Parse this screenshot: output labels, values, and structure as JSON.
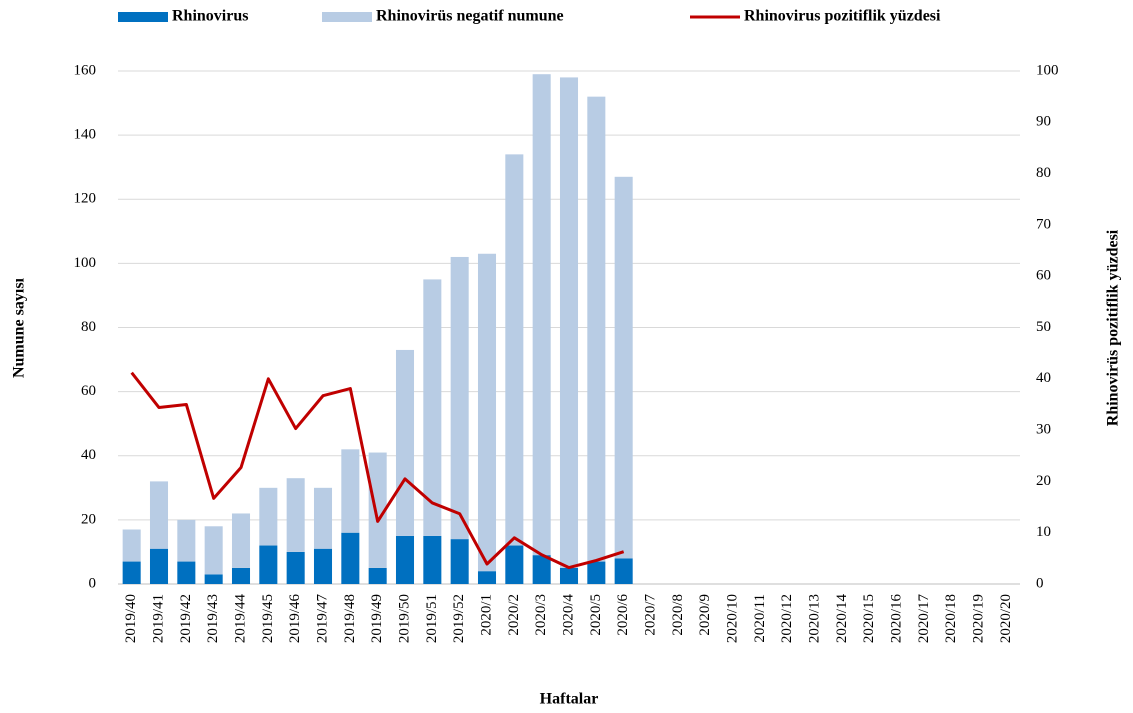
{
  "chart_data": {
    "type": "bar",
    "stacked": true,
    "grid": true,
    "x_label": "Haftalar",
    "y_label": "Numune sayısı",
    "y2_label": "Rhinovirüs pozitiflik yüzdesi",
    "categories": [
      "2019/40",
      "2019/41",
      "2019/42",
      "2019/43",
      "2019/44",
      "2019/45",
      "2019/46",
      "2019/47",
      "2019/48",
      "2019/49",
      "2019/50",
      "2019/51",
      "2019/52",
      "2020/1",
      "2020/2",
      "2020/3",
      "2020/4",
      "2020/5",
      "2020/6",
      "2020/7",
      "2020/8",
      "2020/9",
      "2020/10",
      "2020/11",
      "2020/12",
      "2020/13",
      "2020/14",
      "2020/15",
      "2020/16",
      "2020/17",
      "2020/18",
      "2020/19",
      "2020/20"
    ],
    "series": [
      {
        "name": "Rhinovirus",
        "type": "bar",
        "color": "#0070c0",
        "values": [
          7,
          11,
          7,
          3,
          5,
          12,
          10,
          11,
          16,
          5,
          15,
          15,
          14,
          4,
          12,
          9,
          5,
          7,
          8,
          null,
          null,
          null,
          null,
          null,
          null,
          null,
          null,
          null,
          null,
          null,
          null,
          null,
          null
        ]
      },
      {
        "name": "Rhinovirüs negatif numune",
        "type": "bar",
        "color": "#b8cce4",
        "values": [
          10,
          21,
          13,
          15,
          17,
          18,
          23,
          19,
          26,
          36,
          58,
          80,
          88,
          99,
          122,
          150,
          153,
          145,
          119,
          null,
          null,
          null,
          null,
          null,
          null,
          null,
          null,
          null,
          null,
          null,
          null,
          null,
          null
        ]
      },
      {
        "name": "Rhinovirus pozitiflik yüzdesi",
        "type": "line",
        "axis": "y2",
        "color": "#c00000",
        "values": [
          41.2,
          34.4,
          35,
          16.7,
          22.7,
          40,
          30.3,
          36.7,
          38.1,
          12.2,
          20.5,
          15.8,
          13.7,
          3.9,
          9,
          5.7,
          3.2,
          4.6,
          6.3,
          null,
          null,
          null,
          null,
          null,
          null,
          null,
          null,
          null,
          null,
          null,
          null,
          null,
          null
        ]
      }
    ],
    "ylim": [
      0,
      160
    ],
    "yticks": [
      0,
      20,
      40,
      60,
      80,
      100,
      120,
      140,
      160
    ],
    "y2lim": [
      0,
      100
    ],
    "y2ticks": [
      0,
      10,
      20,
      30,
      40,
      50,
      60,
      70,
      80,
      90,
      100
    ]
  }
}
